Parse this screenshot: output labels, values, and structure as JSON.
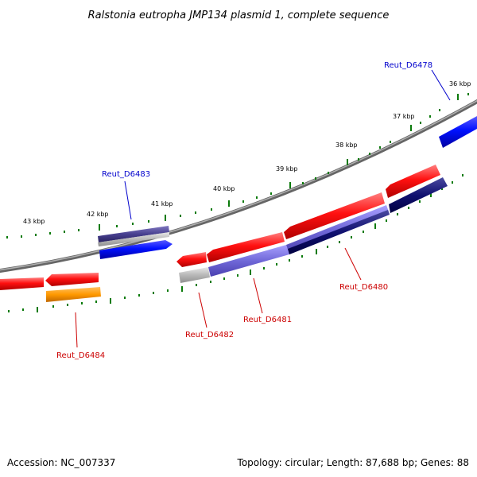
{
  "title": "Ralstonia eutropha JMP134 plasmid 1, complete sequence",
  "footer": {
    "accession": "Accession: NC_007337",
    "summary": "Topology: circular; Length: 87,688 bp; Genes: 88"
  },
  "colors": {
    "backbone": "#888888",
    "tick": "#0a7a0a",
    "label_forward": "#0000cc",
    "label_reverse": "#cc0000"
  },
  "ticks": [
    {
      "kbp": 36,
      "label": "36 kbp"
    },
    {
      "kbp": 37,
      "label": "37 kbp"
    },
    {
      "kbp": 38,
      "label": "38 kbp"
    },
    {
      "kbp": 39,
      "label": "39 kbp"
    },
    {
      "kbp": 40,
      "label": "40 kbp"
    },
    {
      "kbp": 41,
      "label": "41 kbp"
    },
    {
      "kbp": 42,
      "label": "42 kbp"
    },
    {
      "kbp": 43,
      "label": "43 kbp"
    }
  ],
  "labels": [
    {
      "id": "Reut_D6478",
      "text": "Reut_D6478",
      "strand": "forward"
    },
    {
      "id": "Reut_D6483",
      "text": "Reut_D6483",
      "strand": "forward"
    },
    {
      "id": "Reut_D6480",
      "text": "Reut_D6480",
      "strand": "reverse"
    },
    {
      "id": "Reut_D6481",
      "text": "Reut_D6481",
      "strand": "reverse"
    },
    {
      "id": "Reut_D6482",
      "text": "Reut_D6482",
      "strand": "reverse"
    },
    {
      "id": "Reut_D6484",
      "text": "Reut_D6484",
      "strand": "reverse"
    }
  ]
}
